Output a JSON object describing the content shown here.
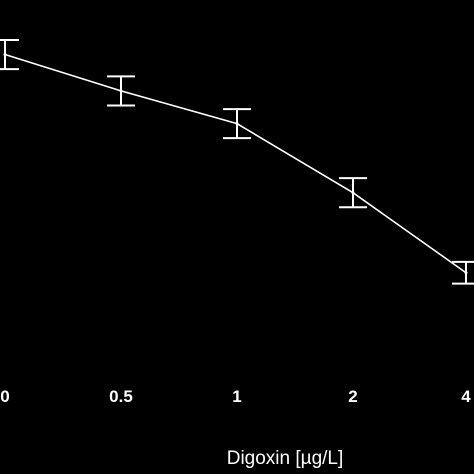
{
  "chart_data": {
    "type": "line",
    "categories": [
      "0",
      "0.5",
      "1",
      "2",
      "4"
    ],
    "series": [
      {
        "values": [
          95,
          85,
          76,
          57,
          35
        ],
        "error": [
          4,
          4,
          4,
          4,
          3
        ]
      }
    ],
    "xlabel": "Digoxin [µg/L]",
    "ylabel": "",
    "title": "",
    "ylim": [
      0,
      110
    ],
    "grid": false,
    "legend": "none",
    "colors": {
      "background": "#000000",
      "line": "#ffffff",
      "text": "#ffffff"
    }
  }
}
